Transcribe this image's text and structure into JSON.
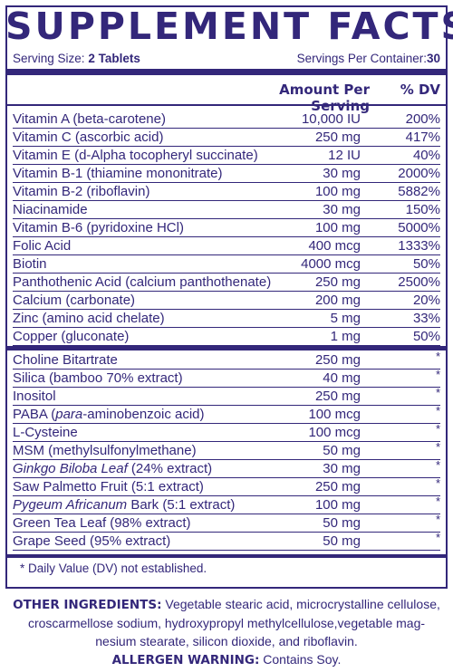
{
  "title": "SUPPLEMENT FACTS",
  "serving": {
    "size_label": "Serving Size:",
    "size_value": "2 Tablets",
    "per_container_label": "Servings Per Container:",
    "per_container_value": "30"
  },
  "header": {
    "amount": "Amount Per Serving",
    "dv": "% DV"
  },
  "vitamins": [
    {
      "name": "Vitamin A (beta-carotene)",
      "amount": "10,000 IU",
      "dv": "200%"
    },
    {
      "name": "Vitamin C (ascorbic acid)",
      "amount": "250 mg",
      "dv": "417%"
    },
    {
      "name": "Vitamin E (d-Alpha tocopheryl succinate)",
      "amount": "12 IU",
      "dv": "40%"
    },
    {
      "name": "Vitamin B-1 (thiamine mononitrate)",
      "amount": "30 mg",
      "dv": "2000%"
    },
    {
      "name": "Vitamin B-2 (riboflavin)",
      "amount": "100 mg",
      "dv": "5882%"
    },
    {
      "name": "Niacinamide",
      "amount": "30 mg",
      "dv": "150%"
    },
    {
      "name": "Vitamin B-6 (pyridoxine HCl)",
      "amount": "100 mg",
      "dv": "5000%"
    },
    {
      "name": "Folic Acid",
      "amount": "400 mcg",
      "dv": "1333%"
    },
    {
      "name": "Biotin",
      "amount": "4000 mcg",
      "dv": "50%"
    },
    {
      "name": "Panthothenic Acid (calcium panthothenate)",
      "amount": "250 mg",
      "dv": "2500%"
    },
    {
      "name": "Calcium (carbonate)",
      "amount": "200 mg",
      "dv": "20%"
    },
    {
      "name": "Zinc (amino acid chelate)",
      "amount": "5 mg",
      "dv": "33%"
    },
    {
      "name": "Copper (gluconate)",
      "amount": "1 mg",
      "dv": "50%"
    }
  ],
  "others": [
    {
      "name": "Choline Bitartrate",
      "amount": "250 mg",
      "dv": "*"
    },
    {
      "name": "Silica (bamboo 70% extract)",
      "amount": "40 mg",
      "dv": "*"
    },
    {
      "name": "Inositol",
      "amount": "250 mg",
      "dv": "*"
    },
    {
      "name_pre": "PABA (",
      "name_it": "para",
      "name_post": "-aminobenzoic acid)",
      "amount": "100 mcg",
      "dv": "*"
    },
    {
      "name": "L-Cysteine",
      "amount": "100 mcg",
      "dv": "*"
    },
    {
      "name": "MSM (methylsulfonylmethane)",
      "amount": "50 mg",
      "dv": "*"
    },
    {
      "name_pre": "",
      "name_it": "Ginkgo Biloba Leaf",
      "name_post": " (24% extract)",
      "amount": "30 mg",
      "dv": "*"
    },
    {
      "name": "Saw Palmetto Fruit (5:1 extract)",
      "amount": "250 mg",
      "dv": "*"
    },
    {
      "name_pre": "",
      "name_it": "Pygeum Africanum",
      "name_post": " Bark (5:1 extract)",
      "amount": "100 mg",
      "dv": "*"
    },
    {
      "name": "Green Tea Leaf (98% extract)",
      "amount": "50 mg",
      "dv": "*"
    },
    {
      "name": "Grape Seed (95% extract)",
      "amount": "50 mg",
      "dv": "*"
    }
  ],
  "footnote": "* Daily Value (DV) not established.",
  "other_ingredients": {
    "label": "OTHER INGREDIENTS:",
    "line1": " Vegetable stearic acid, microcrystalline cellulose,",
    "line2": "croscarmellose sodium, hydroxypropyl methylcellulose,vegetable mag-",
    "line3": "nesium stearate, silicon dioxide, and riboflavin."
  },
  "allergen": {
    "label": "ALLERGEN WARNING:",
    "text": " Contains Soy."
  },
  "colors": {
    "ink": "#33277a",
    "background": "#ffffff"
  }
}
